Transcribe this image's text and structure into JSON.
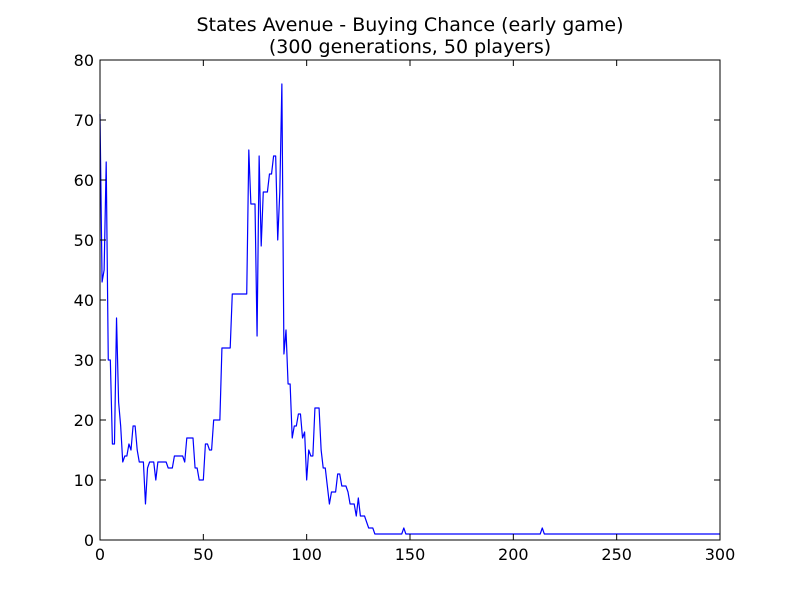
{
  "chart_data": {
    "type": "line",
    "title": "States Avenue - Buying Chance (early game)",
    "subtitle": "(300 generations, 50 players)",
    "xlabel": "",
    "ylabel": "",
    "xlim": [
      0,
      300
    ],
    "ylim": [
      0,
      80
    ],
    "xticks": [
      0,
      50,
      100,
      150,
      200,
      250,
      300
    ],
    "yticks": [
      0,
      10,
      20,
      30,
      40,
      50,
      60,
      70,
      80
    ],
    "grid": false,
    "legend": "none",
    "line_color": "#0000ff",
    "series": [
      {
        "points": [
          [
            0,
            71
          ],
          [
            1,
            43
          ],
          [
            2,
            45
          ],
          [
            3,
            63
          ],
          [
            4,
            30
          ],
          [
            5,
            30
          ],
          [
            6,
            16
          ],
          [
            7,
            16
          ],
          [
            8,
            37
          ],
          [
            9,
            23
          ],
          [
            10,
            19
          ],
          [
            11,
            13
          ],
          [
            12,
            14
          ],
          [
            13,
            14
          ],
          [
            14,
            16
          ],
          [
            15,
            15
          ],
          [
            16,
            19
          ],
          [
            17,
            19
          ],
          [
            18,
            15
          ],
          [
            19,
            13
          ],
          [
            20,
            13
          ],
          [
            21,
            13
          ],
          [
            22,
            6
          ],
          [
            23,
            12
          ],
          [
            24,
            13
          ],
          [
            25,
            13
          ],
          [
            26,
            13
          ],
          [
            27,
            10
          ],
          [
            28,
            13
          ],
          [
            29,
            13
          ],
          [
            30,
            13
          ],
          [
            31,
            13
          ],
          [
            32,
            13
          ],
          [
            33,
            12
          ],
          [
            34,
            12
          ],
          [
            35,
            12
          ],
          [
            36,
            14
          ],
          [
            37,
            14
          ],
          [
            38,
            14
          ],
          [
            39,
            14
          ],
          [
            40,
            14
          ],
          [
            41,
            13
          ],
          [
            42,
            17
          ],
          [
            43,
            17
          ],
          [
            44,
            17
          ],
          [
            45,
            17
          ],
          [
            46,
            12
          ],
          [
            47,
            12
          ],
          [
            48,
            10
          ],
          [
            49,
            10
          ],
          [
            50,
            10
          ],
          [
            51,
            16
          ],
          [
            52,
            16
          ],
          [
            53,
            15
          ],
          [
            54,
            15
          ],
          [
            55,
            20
          ],
          [
            56,
            20
          ],
          [
            57,
            20
          ],
          [
            58,
            20
          ],
          [
            59,
            32
          ],
          [
            60,
            32
          ],
          [
            61,
            32
          ],
          [
            62,
            32
          ],
          [
            63,
            32
          ],
          [
            64,
            41
          ],
          [
            65,
            41
          ],
          [
            66,
            41
          ],
          [
            67,
            41
          ],
          [
            68,
            41
          ],
          [
            69,
            41
          ],
          [
            70,
            41
          ],
          [
            71,
            41
          ],
          [
            72,
            65
          ],
          [
            73,
            56
          ],
          [
            74,
            56
          ],
          [
            75,
            56
          ],
          [
            76,
            34
          ],
          [
            77,
            64
          ],
          [
            78,
            49
          ],
          [
            79,
            58
          ],
          [
            80,
            58
          ],
          [
            81,
            58
          ],
          [
            82,
            61
          ],
          [
            83,
            61
          ],
          [
            84,
            64
          ],
          [
            85,
            64
          ],
          [
            86,
            50
          ],
          [
            87,
            58
          ],
          [
            88,
            76
          ],
          [
            89,
            31
          ],
          [
            90,
            35
          ],
          [
            91,
            26
          ],
          [
            92,
            26
          ],
          [
            93,
            17
          ],
          [
            94,
            19
          ],
          [
            95,
            19
          ],
          [
            96,
            21
          ],
          [
            97,
            21
          ],
          [
            98,
            17
          ],
          [
            99,
            18
          ],
          [
            100,
            10
          ],
          [
            101,
            15
          ],
          [
            102,
            14
          ],
          [
            103,
            14
          ],
          [
            104,
            22
          ],
          [
            105,
            22
          ],
          [
            106,
            22
          ],
          [
            107,
            15
          ],
          [
            108,
            12
          ],
          [
            109,
            12
          ],
          [
            110,
            9
          ],
          [
            111,
            6
          ],
          [
            112,
            8
          ],
          [
            113,
            8
          ],
          [
            114,
            8
          ],
          [
            115,
            11
          ],
          [
            116,
            11
          ],
          [
            117,
            9
          ],
          [
            118,
            9
          ],
          [
            119,
            9
          ],
          [
            120,
            8
          ],
          [
            121,
            6
          ],
          [
            122,
            6
          ],
          [
            123,
            6
          ],
          [
            124,
            4
          ],
          [
            125,
            7
          ],
          [
            126,
            4
          ],
          [
            127,
            4
          ],
          [
            128,
            4
          ],
          [
            129,
            3
          ],
          [
            130,
            2
          ],
          [
            131,
            2
          ],
          [
            132,
            2
          ],
          [
            133,
            1
          ],
          [
            134,
            1
          ],
          [
            135,
            1
          ],
          [
            140,
            1
          ],
          [
            145,
            1
          ],
          [
            146,
            1
          ],
          [
            147,
            2
          ],
          [
            148,
            1
          ],
          [
            150,
            1
          ],
          [
            160,
            1
          ],
          [
            170,
            1
          ],
          [
            180,
            1
          ],
          [
            190,
            1
          ],
          [
            200,
            1
          ],
          [
            210,
            1
          ],
          [
            213,
            1
          ],
          [
            214,
            2
          ],
          [
            215,
            1
          ],
          [
            220,
            1
          ],
          [
            230,
            1
          ],
          [
            240,
            1
          ],
          [
            250,
            1
          ],
          [
            260,
            1
          ],
          [
            270,
            1
          ],
          [
            280,
            1
          ],
          [
            290,
            1
          ],
          [
            300,
            1
          ]
        ]
      }
    ]
  }
}
